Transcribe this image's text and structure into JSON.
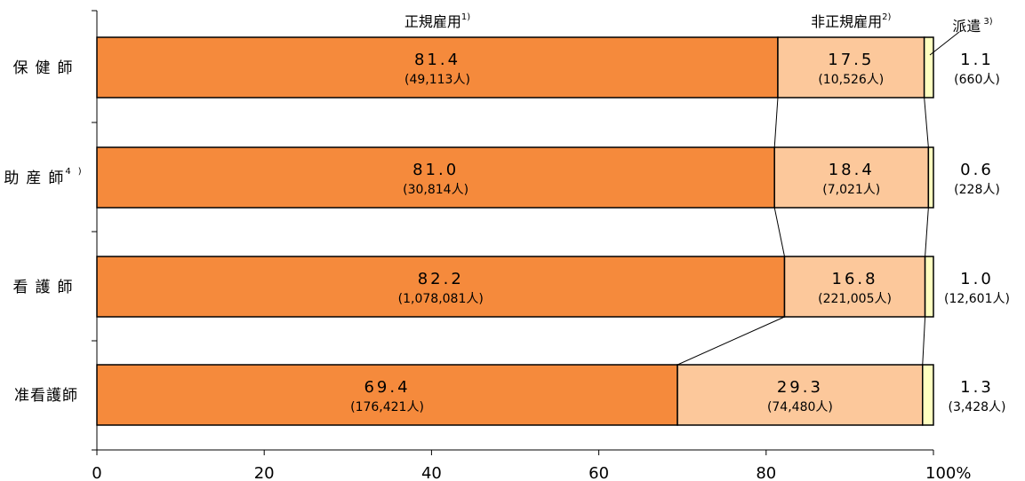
{
  "chart_data": {
    "type": "bar",
    "orientation": "horizontal",
    "stacked": true,
    "percent": true,
    "categories": [
      {
        "label": "保健師",
        "sup": ""
      },
      {
        "label": "助産師",
        "sup": "4)"
      },
      {
        "label": "看護師",
        "sup": ""
      },
      {
        "label": "准看護師",
        "sup": ""
      }
    ],
    "series": [
      {
        "name": "正規雇用",
        "sup": "1)",
        "color": "#f58a3c",
        "values": [
          81.4,
          81.0,
          82.2,
          69.4
        ],
        "value_labels": [
          "81.4",
          "81.0",
          "82.2",
          "69.4"
        ],
        "counts": [
          "(49,113人)",
          "(30,814人)",
          "(1,078,081人)",
          "(176,421人)"
        ]
      },
      {
        "name": "非正規雇用",
        "sup": "2)",
        "color": "#fcc89b",
        "values": [
          17.5,
          18.4,
          16.8,
          29.3
        ],
        "value_labels": [
          "17.5",
          "18.4",
          "16.8",
          "29.3"
        ],
        "counts": [
          "(10,526人)",
          "(7,021人)",
          "(221,005人)",
          "(74,480人)"
        ]
      },
      {
        "name": "派遣",
        "sup": "3)",
        "color": "#ffffc0",
        "values": [
          1.1,
          0.6,
          1.0,
          1.3
        ],
        "value_labels": [
          "1.1",
          "0.6",
          "1.0",
          "1.3"
        ],
        "counts": [
          "(660人)",
          "(228人)",
          "(12,601人)",
          "(3,428人)"
        ]
      }
    ],
    "x_ticks": [
      "0",
      "20",
      "40",
      "60",
      "80",
      "100%"
    ],
    "xlim": [
      0,
      100
    ],
    "grid": false,
    "connector_lines": true
  }
}
